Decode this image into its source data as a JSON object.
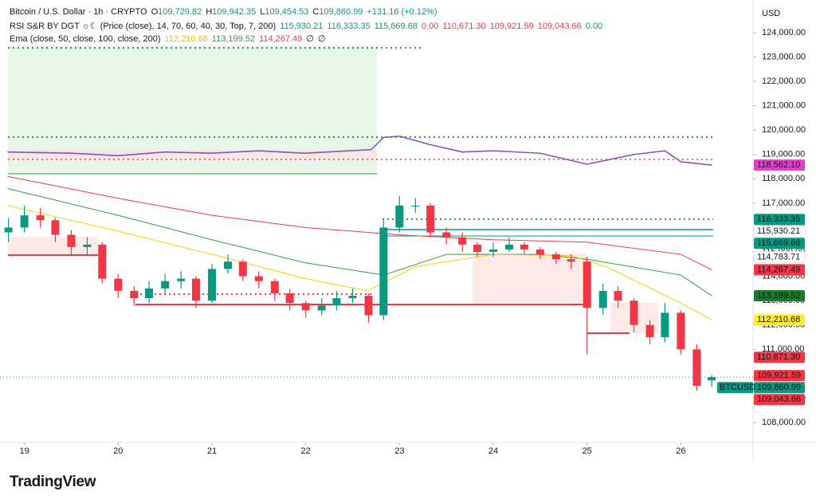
{
  "header": {
    "symbol": "Bitcoin / U.S. Dollar · 1h · CRYPTO",
    "ohlc": [
      {
        "key": "O",
        "value": "109,729.82"
      },
      {
        "key": "H",
        "value": "109,942.35"
      },
      {
        "key": "L",
        "value": "109,454.53"
      },
      {
        "key": "C",
        "value": "109,860.99"
      }
    ],
    "change": "+131.16 (+0.12%)",
    "rsi_title": "RSI S&R BY DGT ☼☾ (Price (close), 14, 70, 60, 40, 30, Top, 7, 200)",
    "rsi_values": [
      {
        "text": "115,930.21",
        "color": "#089981"
      },
      {
        "text": "116,333.35",
        "color": "#089981"
      },
      {
        "text": "115,669.68",
        "color": "#089981"
      },
      {
        "text": "0.00",
        "color": "#f23645"
      },
      {
        "text": "110,671.30",
        "color": "#f23645"
      },
      {
        "text": "109,921.59",
        "color": "#f23645"
      },
      {
        "text": "109,043.66",
        "color": "#f23645"
      },
      {
        "text": "0.00",
        "color": "#089981"
      }
    ],
    "ema_title": "Ema (close, 50, close, 100, close, 200)",
    "ema_values": [
      {
        "text": "112,210.68",
        "color": "#e6c400"
      },
      {
        "text": "113,199.52",
        "color": "#2e9c3f"
      },
      {
        "text": "114,267.49",
        "color": "#f23645"
      },
      {
        "text": "∅",
        "color": "#131722"
      },
      {
        "text": "∅",
        "color": "#131722"
      }
    ],
    "currency": "USD"
  },
  "chart_data": {
    "type": "candlestick",
    "xlim": [
      18.74,
      26.77
    ],
    "xticks": [
      19,
      20,
      21,
      22,
      23,
      24,
      25,
      26
    ],
    "ylim": [
      107180,
      125340
    ],
    "yticks": [
      {
        "value": 108000,
        "label": "108,000.00"
      },
      {
        "value": 109000,
        "label": "109,000.00"
      },
      {
        "value": 110000,
        "label": "110,000.00"
      },
      {
        "value": 111000,
        "label": "111,000.00"
      },
      {
        "value": 112000,
        "label": "112,000.00"
      },
      {
        "value": 113000,
        "label": "113,000.00"
      },
      {
        "value": 114000,
        "label": "114,000.00"
      },
      {
        "value": 115000,
        "label": "115,000.00"
      },
      {
        "value": 116000,
        "label": "116,000.00"
      },
      {
        "value": 117000,
        "label": "117,000.00"
      },
      {
        "value": 118000,
        "label": "118,000.00"
      },
      {
        "value": 119000,
        "label": "119,000.00"
      },
      {
        "value": 120000,
        "label": "120,000.00"
      },
      {
        "value": 121000,
        "label": "121,000.00"
      },
      {
        "value": 122000,
        "label": "122,000.00"
      },
      {
        "value": 123000,
        "label": "123,000.00"
      },
      {
        "value": 124000,
        "label": "124,000.00"
      }
    ],
    "up_color": "#089981",
    "down_color": "#f23645",
    "x": [
      18.83,
      19.0,
      19.17,
      19.33,
      19.5,
      19.67,
      19.83,
      20.0,
      20.17,
      20.33,
      20.5,
      20.67,
      20.83,
      21.0,
      21.17,
      21.33,
      21.5,
      21.67,
      21.83,
      22.0,
      22.17,
      22.33,
      22.5,
      22.67,
      22.83,
      23.0,
      23.17,
      23.33,
      23.5,
      23.67,
      23.83,
      24.0,
      24.17,
      24.33,
      24.5,
      24.67,
      24.83,
      25.0,
      25.17,
      25.33,
      25.5,
      25.67,
      25.83,
      26.0,
      26.17,
      26.33
    ],
    "open": [
      115800,
      116000,
      116500,
      116300,
      115700,
      115200,
      115300,
      113900,
      113400,
      113100,
      113500,
      113800,
      113900,
      113000,
      114300,
      114600,
      114000,
      113800,
      113300,
      112900,
      112600,
      112800,
      113100,
      113200,
      112400,
      116000,
      116900,
      116900,
      115800,
      115600,
      115300,
      115000,
      115100,
      115300,
      115100,
      114900,
      114700,
      114600,
      112700,
      113400,
      113000,
      112000,
      111500,
      112500,
      111000,
      109729.82
    ],
    "high": [
      116400,
      116900,
      116800,
      116400,
      115900,
      115600,
      115400,
      114100,
      113600,
      113800,
      114100,
      114200,
      114000,
      114500,
      114900,
      114700,
      114200,
      113900,
      113500,
      113000,
      113100,
      113400,
      113500,
      113300,
      116300,
      117300,
      117200,
      117000,
      116000,
      115800,
      115400,
      115400,
      115600,
      115400,
      115200,
      115000,
      114900,
      114800,
      113700,
      113600,
      113100,
      112200,
      112900,
      112600,
      111200,
      109942.35
    ],
    "low": [
      115400,
      115800,
      116000,
      115400,
      114900,
      114900,
      113700,
      113100,
      112800,
      112900,
      113300,
      113500,
      112700,
      112900,
      114100,
      113800,
      113500,
      113000,
      112600,
      112300,
      112400,
      112600,
      112900,
      112100,
      112200,
      115800,
      116600,
      115600,
      115300,
      115000,
      114800,
      114800,
      115000,
      114900,
      114700,
      114500,
      114300,
      110800,
      112400,
      112700,
      111700,
      111200,
      111300,
      110800,
      109300,
      109454.53
    ],
    "close": [
      116000,
      116500,
      116300,
      115700,
      115200,
      115300,
      113900,
      113400,
      113100,
      113500,
      113800,
      113900,
      113000,
      114300,
      114600,
      114000,
      113800,
      113300,
      112900,
      112600,
      112800,
      113100,
      113200,
      112400,
      116000,
      116900,
      116900,
      115800,
      115600,
      115300,
      115000,
      115100,
      115300,
      115100,
      114900,
      114700,
      114600,
      112700,
      113400,
      113000,
      112000,
      111500,
      112500,
      111000,
      109500,
      109860.99
    ],
    "lines": [
      {
        "name": "EMA 200",
        "color": "#f23645",
        "x": [
          18.82,
          20,
          21,
          22,
          23,
          24,
          25,
          26,
          26.33
        ],
        "values": [
          118100,
          117200,
          116500,
          116000,
          115700,
          115500,
          115400,
          114900,
          114267.49
        ]
      },
      {
        "name": "EMA 100",
        "color": "#2e9c3f",
        "x": [
          18.82,
          20,
          21,
          22,
          22.83,
          23.5,
          24.5,
          25,
          26,
          26.33
        ],
        "values": [
          117600,
          116500,
          115500,
          114550,
          114050,
          114900,
          114900,
          114700,
          114050,
          113199.52
        ]
      },
      {
        "name": "EMA 50",
        "color": "#f0d000",
        "x": [
          18.82,
          20,
          21,
          22,
          22.66,
          23.17,
          24,
          24.83,
          25.2,
          26,
          26.33
        ],
        "values": [
          116900,
          115850,
          114900,
          113900,
          113400,
          114400,
          114900,
          114850,
          114400,
          112900,
          112210.68
        ]
      },
      {
        "name": "RSI",
        "color": "#7e57c2",
        "x": [
          18.82,
          19.5,
          20,
          20.5,
          21,
          21.5,
          22,
          22.7,
          22.83,
          23.0,
          23.33,
          23.67,
          24,
          24.5,
          25,
          25.5,
          25.83,
          26,
          26.33
        ],
        "values": [
          119100,
          119050,
          118950,
          119100,
          119050,
          119150,
          119050,
          119200,
          119700,
          119750,
          119400,
          119100,
          119150,
          119050,
          118600,
          119000,
          119150,
          118700,
          118562.1
        ]
      }
    ],
    "price_labels": [
      {
        "value": 118562.1,
        "label": "118,562.10",
        "color": "#e040c8"
      },
      {
        "value": 116333.35,
        "label": "116,333.35",
        "color": "#089981"
      },
      {
        "value": 115930.21,
        "label": "115,930.21",
        "color": "#ffffff"
      },
      {
        "value": 115669.68,
        "label": "115,669.68",
        "color": "#089981"
      },
      {
        "value": 114783.71,
        "label": "114,783.71",
        "color": "#ffffff"
      },
      {
        "value": 114267.49,
        "label": "114,267.49",
        "color": "#f23645"
      },
      {
        "value": 113199.52,
        "label": "113,199.52",
        "color": "#1b7a2c"
      },
      {
        "value": 112210.68,
        "label": "112,210.68",
        "color": "#ffeb3b"
      },
      {
        "value": 110671.3,
        "label": "110,671.30",
        "color": "#f23645"
      },
      {
        "value": 109921.59,
        "label": "109,921.59",
        "color": "#f23645"
      },
      {
        "value": 109860.99,
        "label": "109,860.99",
        "color": "#089981",
        "tag": "BTCUSD"
      },
      {
        "value": 109043.66,
        "label": "109,043.66",
        "color": "#f23645"
      }
    ],
    "logo": "TradingView"
  }
}
